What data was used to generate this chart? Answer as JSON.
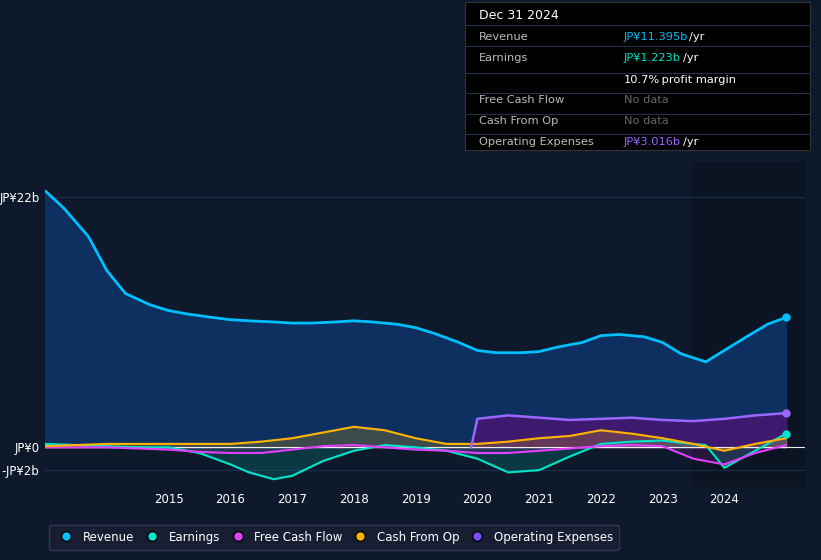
{
  "background_color": "#0e1a2b",
  "plot_bg_color": "#0e1a2b",
  "chart_fill_color": "#0d2a4a",
  "grid_color": "#1e3a5f",
  "zero_line_color": "#ffffff",
  "ylim": [
    -3.5,
    25
  ],
  "yticks": [
    22,
    0,
    -2
  ],
  "ytick_labels": [
    "JP¥22b",
    "JP¥0",
    "-JP¥2b"
  ],
  "xlim_start": 2013.0,
  "xlim_end": 2025.3,
  "xtick_positions": [
    2015,
    2016,
    2017,
    2018,
    2019,
    2020,
    2021,
    2022,
    2023,
    2024
  ],
  "info_box": {
    "bg_color": "#000000",
    "border_color": "#333333",
    "date_text": "Dec 31 2024",
    "date_color": "#ffffff",
    "rows": [
      {
        "label": "Revenue",
        "label_color": "#aaaaaa",
        "value": "JP¥11.395b /yr",
        "value_color": "#00bfff"
      },
      {
        "label": "Earnings",
        "label_color": "#aaaaaa",
        "value": "JP¥1.223b /yr",
        "value_color": "#00e5c8"
      },
      {
        "label": "",
        "label_color": "#aaaaaa",
        "value": "10.7% profit margin",
        "value_color": "#ffffff"
      },
      {
        "label": "Free Cash Flow",
        "label_color": "#aaaaaa",
        "value": "No data",
        "value_color": "#666666"
      },
      {
        "label": "Cash From Op",
        "label_color": "#aaaaaa",
        "value": "No data",
        "value_color": "#666666"
      },
      {
        "label": "Operating Expenses",
        "label_color": "#aaaaaa",
        "value": "JP¥3.016b /yr",
        "value_color": "#9966ff"
      }
    ]
  },
  "legend": [
    {
      "label": "Revenue",
      "color": "#00bfff"
    },
    {
      "label": "Earnings",
      "color": "#00e5c8"
    },
    {
      "label": "Free Cash Flow",
      "color": "#e040fb"
    },
    {
      "label": "Cash From Op",
      "color": "#ffb300"
    },
    {
      "label": "Operating Expenses",
      "color": "#7c4dff"
    }
  ],
  "revenue": {
    "x": [
      2013.0,
      2013.3,
      2013.7,
      2014.0,
      2014.3,
      2014.7,
      2015.0,
      2015.3,
      2015.7,
      2016.0,
      2016.3,
      2016.7,
      2017.0,
      2017.3,
      2017.7,
      2018.0,
      2018.3,
      2018.7,
      2019.0,
      2019.3,
      2019.7,
      2020.0,
      2020.3,
      2020.7,
      2021.0,
      2021.3,
      2021.7,
      2022.0,
      2022.3,
      2022.7,
      2023.0,
      2023.3,
      2023.7,
      2024.0,
      2024.3,
      2024.7,
      2025.0
    ],
    "y": [
      22.5,
      21.0,
      18.5,
      15.5,
      13.5,
      12.5,
      12.0,
      11.7,
      11.4,
      11.2,
      11.1,
      11.0,
      10.9,
      10.9,
      11.0,
      11.1,
      11.0,
      10.8,
      10.5,
      10.0,
      9.2,
      8.5,
      8.3,
      8.3,
      8.4,
      8.8,
      9.2,
      9.8,
      9.9,
      9.7,
      9.2,
      8.2,
      7.5,
      8.5,
      9.5,
      10.8,
      11.4
    ],
    "color": "#00bfff",
    "fill_color": "#0d3060",
    "linewidth": 2.0
  },
  "earnings": {
    "x": [
      2013.0,
      2013.5,
      2014.0,
      2014.5,
      2015.0,
      2015.5,
      2016.0,
      2016.3,
      2016.7,
      2017.0,
      2017.5,
      2018.0,
      2018.5,
      2019.0,
      2019.5,
      2020.0,
      2020.5,
      2021.0,
      2021.5,
      2022.0,
      2022.5,
      2023.0,
      2023.3,
      2023.7,
      2024.0,
      2024.5,
      2025.0
    ],
    "y": [
      0.3,
      0.2,
      0.1,
      0.0,
      0.0,
      -0.5,
      -1.5,
      -2.2,
      -2.8,
      -2.5,
      -1.2,
      -0.3,
      0.2,
      0.0,
      -0.3,
      -1.0,
      -2.2,
      -2.0,
      -0.8,
      0.3,
      0.5,
      0.6,
      0.4,
      0.2,
      -1.8,
      -0.3,
      1.2
    ],
    "color": "#00e5c8",
    "fill_color": "#00e5c820",
    "linewidth": 1.5
  },
  "free_cash_flow": {
    "x": [
      2013.0,
      2013.5,
      2014.0,
      2014.5,
      2015.0,
      2015.5,
      2016.0,
      2016.5,
      2017.0,
      2017.5,
      2018.0,
      2018.5,
      2019.0,
      2019.5,
      2020.0,
      2020.5,
      2021.0,
      2021.5,
      2022.0,
      2022.5,
      2023.0,
      2023.5,
      2024.0,
      2024.5,
      2025.0
    ],
    "y": [
      0.0,
      0.0,
      0.0,
      -0.1,
      -0.2,
      -0.4,
      -0.5,
      -0.5,
      -0.2,
      0.1,
      0.2,
      0.0,
      -0.2,
      -0.3,
      -0.5,
      -0.5,
      -0.3,
      -0.1,
      0.1,
      0.2,
      0.1,
      -1.0,
      -1.5,
      -0.5,
      0.2
    ],
    "color": "#e040fb",
    "linewidth": 1.5
  },
  "cash_from_op": {
    "x": [
      2013.0,
      2013.5,
      2014.0,
      2014.5,
      2015.0,
      2015.5,
      2016.0,
      2016.5,
      2017.0,
      2017.5,
      2018.0,
      2018.5,
      2019.0,
      2019.5,
      2020.0,
      2020.5,
      2021.0,
      2021.5,
      2022.0,
      2022.5,
      2023.0,
      2023.5,
      2024.0,
      2024.5,
      2025.0
    ],
    "y": [
      0.1,
      0.2,
      0.3,
      0.3,
      0.3,
      0.3,
      0.3,
      0.5,
      0.8,
      1.3,
      1.8,
      1.5,
      0.8,
      0.3,
      0.3,
      0.5,
      0.8,
      1.0,
      1.5,
      1.2,
      0.8,
      0.3,
      -0.3,
      0.3,
      0.8
    ],
    "color": "#ffb300",
    "linewidth": 1.5
  },
  "operating_expenses": {
    "x": [
      2019.9,
      2020.0,
      2020.5,
      2021.0,
      2021.5,
      2022.0,
      2022.5,
      2023.0,
      2023.5,
      2024.0,
      2024.5,
      2025.0
    ],
    "y": [
      0.0,
      2.5,
      2.8,
      2.6,
      2.4,
      2.5,
      2.6,
      2.4,
      2.3,
      2.5,
      2.8,
      3.0
    ],
    "color": "#9966ff",
    "fill_color": "#3d1a6e",
    "linewidth": 1.8
  },
  "shade_right_x": 2023.5
}
